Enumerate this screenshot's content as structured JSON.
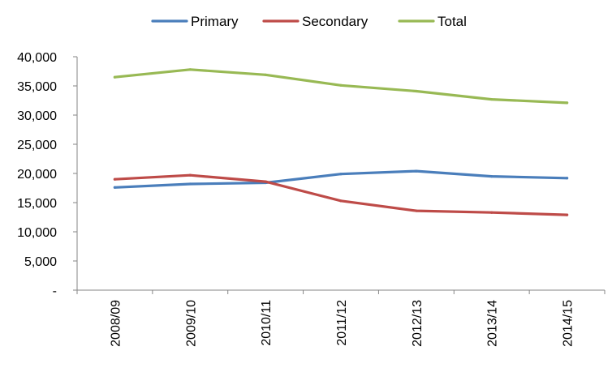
{
  "chart_data": {
    "type": "line",
    "title": "",
    "xlabel": "",
    "ylabel": "",
    "categories": [
      "2008/09",
      "2009/10",
      "2010/11",
      "2011/12",
      "2012/13",
      "2013/14",
      "2014/15"
    ],
    "ylim": [
      0,
      40000
    ],
    "y_ticks": [
      0,
      5000,
      10000,
      15000,
      20000,
      25000,
      30000,
      35000,
      40000
    ],
    "y_tick_labels": [
      "-",
      "5,000",
      "10,000",
      "15,000",
      "20,000",
      "25,000",
      "30,000",
      "35,000",
      "40,000"
    ],
    "grid": false,
    "legend_position": "top",
    "series": [
      {
        "name": "Primary",
        "color": "#4a7ebb",
        "values": [
          17600,
          18200,
          18400,
          19900,
          20400,
          19500,
          19200
        ]
      },
      {
        "name": "Secondary",
        "color": "#be4b48",
        "values": [
          19000,
          19700,
          18600,
          15300,
          13600,
          13300,
          12900
        ]
      },
      {
        "name": "Total",
        "color": "#98b954",
        "values": [
          36500,
          37800,
          36900,
          35100,
          34100,
          32700,
          32100
        ]
      }
    ]
  }
}
